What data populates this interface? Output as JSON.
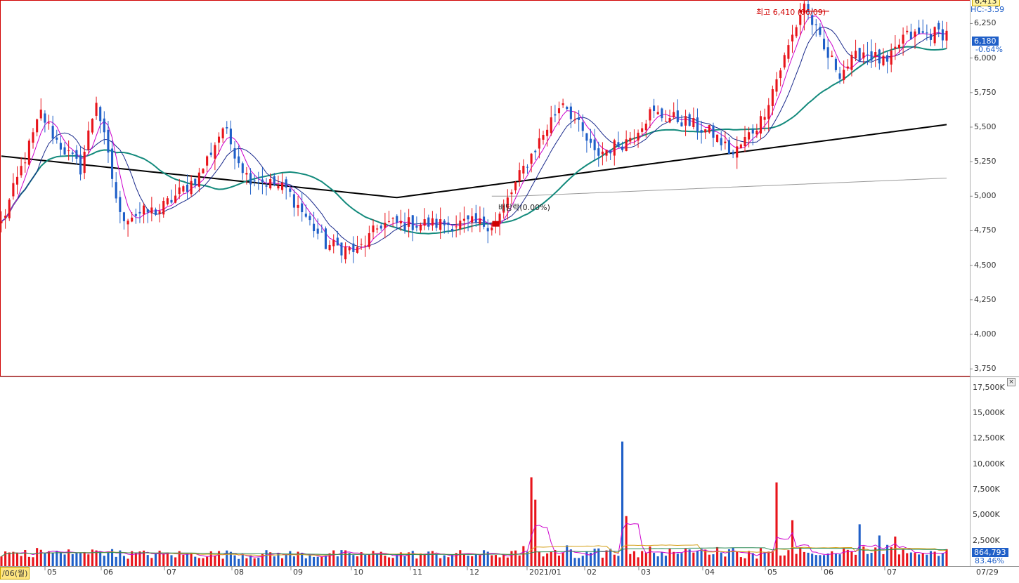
{
  "chart_data": [
    {
      "type": "candlestick",
      "panel": "price",
      "y_ticks": [
        "6,250",
        "6,000",
        "5,750",
        "5,500",
        "5,250",
        "5,000",
        "4,750",
        "4,500",
        "4,250",
        "4,000",
        "3,750"
      ],
      "ylim": [
        3700,
        6420
      ],
      "current_price": "6,180",
      "change_pct": "-0.64%",
      "top_right_value": "6,413",
      "top_right_sub": "HC:-3.59",
      "high_annotation": "최고 6,410 (06/09)",
      "event_annotation": "배당락(0.00%)",
      "series_desc": [
        "candles",
        "ma5",
        "ma10",
        "ma20",
        "ma60",
        "ma120",
        "ma240"
      ],
      "colors": {
        "up": "#e8141b",
        "down": "#1f5fc8",
        "ma5": "#cc00cc",
        "ma10": "#1a2a8c",
        "ma60": "#138a7c",
        "ma120": "#000000",
        "ma240": "#9a9a9a"
      },
      "anchors": [
        [
          0,
          4800
        ],
        [
          10,
          5600
        ],
        [
          14,
          5400
        ],
        [
          20,
          5200
        ],
        [
          24,
          5700
        ],
        [
          30,
          4850
        ],
        [
          40,
          4900
        ],
        [
          50,
          5150
        ],
        [
          56,
          5500
        ],
        [
          62,
          5150
        ],
        [
          72,
          5050
        ],
        [
          82,
          4650
        ],
        [
          90,
          4600
        ],
        [
          96,
          4800
        ],
        [
          110,
          4800
        ],
        [
          125,
          4800
        ],
        [
          132,
          5200
        ],
        [
          138,
          5500
        ],
        [
          142,
          5700
        ],
        [
          150,
          5300
        ],
        [
          158,
          5400
        ],
        [
          164,
          5600
        ],
        [
          172,
          5550
        ],
        [
          180,
          5450
        ],
        [
          185,
          5300
        ],
        [
          192,
          5550
        ],
        [
          198,
          6000
        ],
        [
          203,
          6400
        ],
        [
          208,
          6050
        ],
        [
          212,
          5900
        ],
        [
          218,
          6050
        ],
        [
          224,
          5950
        ],
        [
          228,
          6150
        ],
        [
          236,
          6180
        ]
      ]
    },
    {
      "type": "bar",
      "panel": "volume",
      "y_ticks": [
        "17,500K",
        "15,000K",
        "12,500K",
        "10,000K",
        "7,500K",
        "5,000K",
        "2,500K"
      ],
      "ylim": [
        0,
        18500
      ],
      "current_volume": "864,793",
      "volume_pct": "83.46%",
      "spikes": [
        [
          10,
          1600
        ],
        [
          27,
          1400
        ],
        [
          58,
          1400
        ],
        [
          88,
          1300
        ],
        [
          134,
          8700
        ],
        [
          135,
          6500
        ],
        [
          157,
          12200
        ],
        [
          158,
          4900
        ],
        [
          196,
          8200
        ],
        [
          200,
          4500
        ],
        [
          217,
          4100
        ],
        [
          222,
          3000
        ],
        [
          226,
          2900
        ]
      ]
    }
  ],
  "x_ticks": [
    "05",
    "06",
    "07",
    "08",
    "09",
    "10",
    "11",
    "12",
    "2021/01",
    "02",
    "03",
    "04",
    "05",
    "06",
    "07"
  ],
  "x_left_label": "/06(월)",
  "x_right_label": "07/29",
  "close_button": "×"
}
